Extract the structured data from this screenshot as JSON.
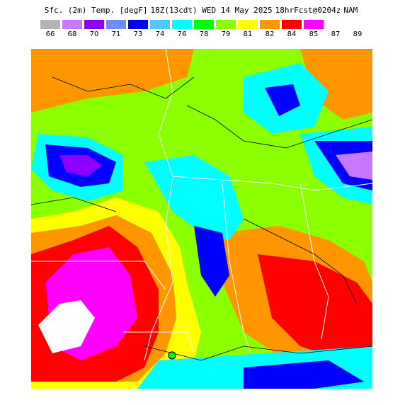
{
  "title": {
    "product": "Sfc. (2m) Temp. [degF]",
    "valid": "18Z(13cdt) WED 14 May 2025",
    "forecast": "18hrFcst@0204z",
    "model": "NAM"
  },
  "legend": {
    "colors": [
      "#b4b4b4",
      "#c878ff",
      "#8c00ff",
      "#6e8cff",
      "#0000ff",
      "#50c8ff",
      "#00ffff",
      "#00ff00",
      "#8cff00",
      "#ffff00",
      "#ff9600",
      "#ff0000",
      "#ff00ff"
    ],
    "labels": [
      "66",
      "68",
      "70",
      "71",
      "73",
      "74",
      "76",
      "78",
      "79",
      "81",
      "82",
      "84",
      "85",
      "87",
      "89"
    ]
  },
  "map": {
    "base_color": "#8cff00",
    "state_line_color": "#ffffff",
    "contour_color": "#000000"
  }
}
